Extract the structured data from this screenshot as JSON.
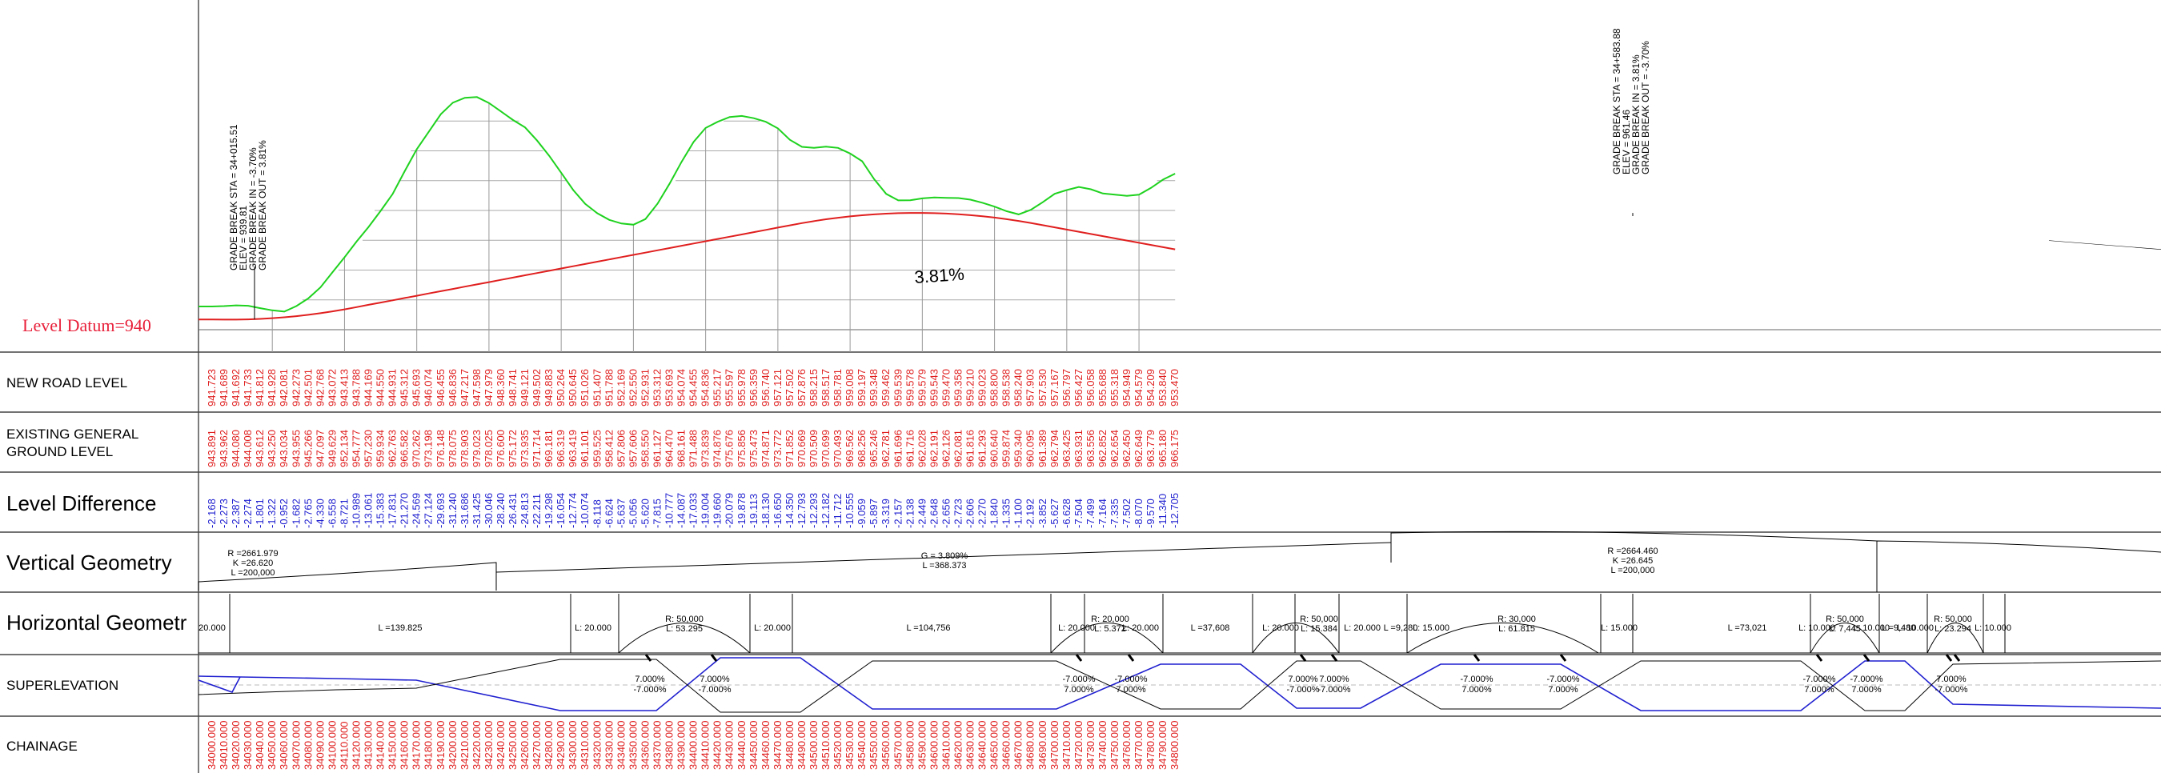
{
  "datum_label": "Level Datum=940",
  "row_labels": {
    "new_road": "NEW ROAD LEVEL",
    "existing_1": "EXISTING GENERAL",
    "existing_2": "GROUND LEVEL",
    "difference": "Level Difference",
    "vertical": "Vertical Geometry",
    "horizontal": "Horizontal Geometr",
    "superelevation": "SUPERLEVATION",
    "chainage": "CHAINAGE"
  },
  "grade_label": "3.81%",
  "grade_break_1": [
    "GRADE BREAK STA = 34+015.51",
    "ELEV = 939.81",
    "GRADE BREAK IN = -3.70%",
    "GRADE BREAK OUT = 3.81%"
  ],
  "grade_break_2": [
    "GRADE BREAK STA = 34+583.88",
    "ELEV = 961.46",
    "GRADE BREAK IN = 3.81%",
    "GRADE BREAK OUT = -3.70%"
  ],
  "new_road_levels": [
    "941.723",
    "941.689",
    "941.692",
    "941.733",
    "941.812",
    "941.928",
    "942.081",
    "942.273",
    "942.501",
    "942.768",
    "943.072",
    "943.413",
    "943.788",
    "944.169",
    "944.550",
    "944.931",
    "945.312",
    "945.693",
    "946.074",
    "946.455",
    "946.836",
    "947.217",
    "947.598",
    "947.979",
    "948.360",
    "948.741",
    "949.121",
    "949.502",
    "949.883",
    "950.264",
    "950.645",
    "951.026",
    "951.407",
    "951.788",
    "952.169",
    "952.550",
    "952.931",
    "953.312",
    "953.693",
    "954.074",
    "954.455",
    "954.836",
    "955.217",
    "955.597",
    "955.978",
    "956.359",
    "956.740",
    "957.121",
    "957.502",
    "957.876",
    "958.215",
    "958.517",
    "958.781",
    "959.008",
    "959.197",
    "959.348",
    "959.462",
    "959.539",
    "959.578",
    "959.579",
    "959.543",
    "959.470",
    "959.358",
    "959.210",
    "959.023",
    "958.800",
    "958.538",
    "958.240",
    "957.903",
    "957.530",
    "957.167",
    "956.797",
    "956.427",
    "956.058",
    "955.688",
    "955.318",
    "954.949",
    "954.579",
    "954.209",
    "953.840",
    "953.470"
  ],
  "existing_levels": [
    "943.891",
    "943.962",
    "944.080",
    "944.008",
    "943.612",
    "943.250",
    "943.034",
    "943.955",
    "945.266",
    "947.097",
    "949.629",
    "952.134",
    "954.777",
    "957.230",
    "959.934",
    "962.763",
    "966.582",
    "970.262",
    "973.198",
    "976.148",
    "978.075",
    "978.903",
    "979.023",
    "978.025",
    "976.600",
    "975.172",
    "973.935",
    "971.714",
    "969.181",
    "966.319",
    "963.419",
    "961.101",
    "959.525",
    "958.412",
    "957.806",
    "957.606",
    "958.550",
    "961.127",
    "964.470",
    "968.161",
    "971.488",
    "973.839",
    "974.876",
    "975.676",
    "975.856",
    "975.473",
    "974.871",
    "973.772",
    "971.852",
    "970.669",
    "970.509",
    "970.699",
    "970.493",
    "969.562",
    "968.256",
    "965.246",
    "962.781",
    "961.696",
    "961.716",
    "962.028",
    "962.191",
    "962.126",
    "962.081",
    "961.816",
    "961.293",
    "960.640",
    "959.874",
    "959.340",
    "960.095",
    "961.389",
    "962.794",
    "963.425",
    "963.931",
    "963.556",
    "962.852",
    "962.654",
    "962.450",
    "962.649",
    "963.779",
    "965.180",
    "966.175"
  ],
  "level_differences": [
    "-2.168",
    "-2.273",
    "-2.387",
    "-2.274",
    "-1.801",
    "-1.322",
    "-0.952",
    "-1.682",
    "-2.765",
    "-4.330",
    "-6.558",
    "-8.721",
    "-10.989",
    "-13.061",
    "-15.383",
    "-17.831",
    "-21.270",
    "-24.569",
    "-27.124",
    "-29.693",
    "-31.240",
    "-31.686",
    "-31.425",
    "-30.046",
    "-28.240",
    "-26.431",
    "-24.813",
    "-22.211",
    "-19.298",
    "-16.054",
    "-12.774",
    "-10.074",
    "-8.118",
    "-6.624",
    "-5.637",
    "-5.056",
    "-5.620",
    "-7.815",
    "-10.777",
    "-14.087",
    "-17.033",
    "-19.004",
    "-19.660",
    "-20.079",
    "-19.878",
    "-19.113",
    "-18.130",
    "-16.650",
    "-14.350",
    "-12.793",
    "-12.293",
    "-12.182",
    "-11.712",
    "-10.555",
    "-9.059",
    "-5.897",
    "-3.319",
    "-2.157",
    "-2.138",
    "-2.449",
    "-2.648",
    "-2.656",
    "-2.723",
    "-2.606",
    "-2.270",
    "-1.840",
    "-1.335",
    "-1.100",
    "-2.192",
    "-3.852",
    "-5.627",
    "-6.628",
    "-7.504",
    "-7.499",
    "-7.164",
    "-7.335",
    "-7.502",
    "-8.070",
    "-9.570",
    "-11.340",
    "-12.705"
  ],
  "chainages": [
    "34000.000",
    "34010.000",
    "34020.000",
    "34030.000",
    "34040.000",
    "34050.000",
    "34060.000",
    "34070.000",
    "34080.000",
    "34090.000",
    "34100.000",
    "34110.000",
    "34120.000",
    "34130.000",
    "34140.000",
    "34150.000",
    "34160.000",
    "34170.000",
    "34180.000",
    "34190.000",
    "34200.000",
    "34210.000",
    "34220.000",
    "34230.000",
    "34240.000",
    "34250.000",
    "34260.000",
    "34270.000",
    "34280.000",
    "34290.000",
    "34300.000",
    "34310.000",
    "34320.000",
    "34330.000",
    "34340.000",
    "34350.000",
    "34360.000",
    "34370.000",
    "34380.000",
    "34390.000",
    "34400.000",
    "34410.000",
    "34420.000",
    "34430.000",
    "34440.000",
    "34450.000",
    "34460.000",
    "34470.000",
    "34480.000",
    "34490.000",
    "34500.000",
    "34510.000",
    "34520.000",
    "34530.000",
    "34540.000",
    "34550.000",
    "34560.000",
    "34570.000",
    "34580.000",
    "34590.000",
    "34600.000",
    "34610.000",
    "34620.000",
    "34630.000",
    "34640.000",
    "34650.000",
    "34660.000",
    "34670.000",
    "34680.000",
    "34690.000",
    "34700.000",
    "34710.000",
    "34720.000",
    "34730.000",
    "34740.000",
    "34750.000",
    "34760.000",
    "34770.000",
    "34780.000",
    "34790.000",
    "34800.000"
  ],
  "vertical_geometry": {
    "curve1": [
      "R =2661.979",
      "K =26.620",
      "L =200,000"
    ],
    "grade": [
      "G = 3.809%",
      "L =368.373"
    ],
    "curve2": [
      "R =2664.460",
      "K =26.645",
      "L =200,000"
    ]
  },
  "horizontal_geometry": [
    {
      "id": "h0",
      "lines": [
        "20.000"
      ]
    },
    {
      "id": "h1",
      "lines": [
        "L =139.825"
      ]
    },
    {
      "id": "h2",
      "lines": [
        "L: 20.000"
      ]
    },
    {
      "id": "h3",
      "lines": [
        "R: 50,000",
        "L: 53.295"
      ]
    },
    {
      "id": "h4",
      "lines": [
        "L: 20.000"
      ]
    },
    {
      "id": "h5",
      "lines": [
        "L =104,756"
      ]
    },
    {
      "id": "h6",
      "lines": [
        "L: 20.000"
      ]
    },
    {
      "id": "h7",
      "lines": [
        "R: 20,000",
        "L: 5.372"
      ]
    },
    {
      "id": "h8",
      "lines": [
        "L: 20.000"
      ]
    },
    {
      "id": "h9",
      "lines": [
        "L =37,608"
      ]
    },
    {
      "id": "h10",
      "lines": [
        "L: 20.000"
      ]
    },
    {
      "id": "h11",
      "lines": [
        "R: 50,000",
        "L: 15.384"
      ]
    },
    {
      "id": "h12",
      "lines": [
        "L: 20.000"
      ]
    },
    {
      "id": "h13",
      "lines": [
        "L =9,280"
      ]
    },
    {
      "id": "h14",
      "lines": [
        "L: 15.000"
      ]
    },
    {
      "id": "h15",
      "lines": [
        "R: 30,000",
        "L: 61.815"
      ]
    },
    {
      "id": "h16",
      "lines": [
        "L: 15.000"
      ]
    },
    {
      "id": "h17",
      "lines": [
        "L =73,021"
      ]
    },
    {
      "id": "h18",
      "lines": [
        "L: 10.000"
      ]
    },
    {
      "id": "h19",
      "lines": [
        "R: 50,000",
        "L: 7,445"
      ]
    },
    {
      "id": "h20",
      "lines": [
        "L: 10.000"
      ]
    },
    {
      "id": "h21",
      "lines": [
        "L =9,480"
      ]
    },
    {
      "id": "h22",
      "lines": [
        "L: 10.000"
      ]
    },
    {
      "id": "h23",
      "lines": [
        "R: 50,000",
        "L: 23.294"
      ]
    },
    {
      "id": "h24",
      "lines": [
        "L: 10.000"
      ]
    }
  ],
  "superelevation": [
    {
      "id": "s1",
      "lines": [
        "7.000%",
        "-7.000%"
      ]
    },
    {
      "id": "s2",
      "lines": [
        "7.000%",
        "-7.000%"
      ]
    },
    {
      "id": "s3",
      "lines": [
        "-7.000%",
        "7.000%"
      ]
    },
    {
      "id": "s4",
      "lines": [
        "-7.000%",
        "7.000%"
      ]
    },
    {
      "id": "s5",
      "lines": [
        "7.000%",
        "-7.000%"
      ]
    },
    {
      "id": "s6",
      "lines": [
        "7.000%",
        "-7.000%"
      ]
    },
    {
      "id": "s7",
      "lines": [
        "-7.000%",
        "7.000%"
      ]
    },
    {
      "id": "s8",
      "lines": [
        "-7.000%",
        "7.000%"
      ]
    },
    {
      "id": "s9",
      "lines": [
        "-7.000%",
        "7.000%"
      ]
    },
    {
      "id": "s10",
      "lines": [
        "-7.000%",
        "7.000%"
      ]
    },
    {
      "id": "s11",
      "lines": [
        "7.000%",
        "-7.000%"
      ]
    }
  ],
  "colors": {
    "new_road": "#e01f1f",
    "existing": "#1fd21f",
    "difference": "#1f1fd0",
    "superelevation": "#1f1fd0",
    "datum": "#e8203a"
  }
}
